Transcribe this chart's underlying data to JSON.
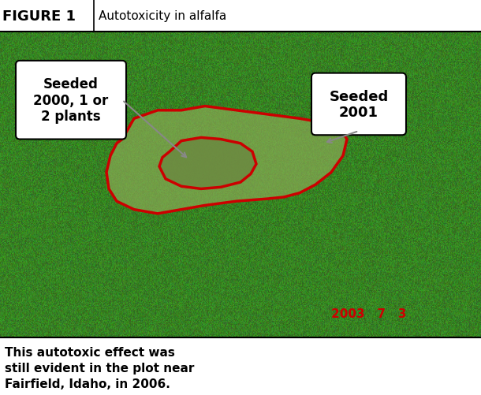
{
  "figure_label": "FIGURE 1",
  "figure_title": "Autotoxicity in alfalfa",
  "caption_text": "This autotoxic effect was\nstill evident in the plot near\nFairfield, Idaho, in 2006.",
  "date_stamp": "2003   7   3",
  "callout_left": "Seeded\n2000, 1 or\n2 plants",
  "callout_right": "Seeded\n2001",
  "header_bg": "#ffffff",
  "caption_bg": "#ffffff",
  "border_color": "#000000",
  "callout_bg": "#ffffff",
  "callout_border": "#000000",
  "date_color": "#cc0000",
  "outline_color": "#dd0000",
  "fig_width": 6.1,
  "fig_height": 5.02
}
